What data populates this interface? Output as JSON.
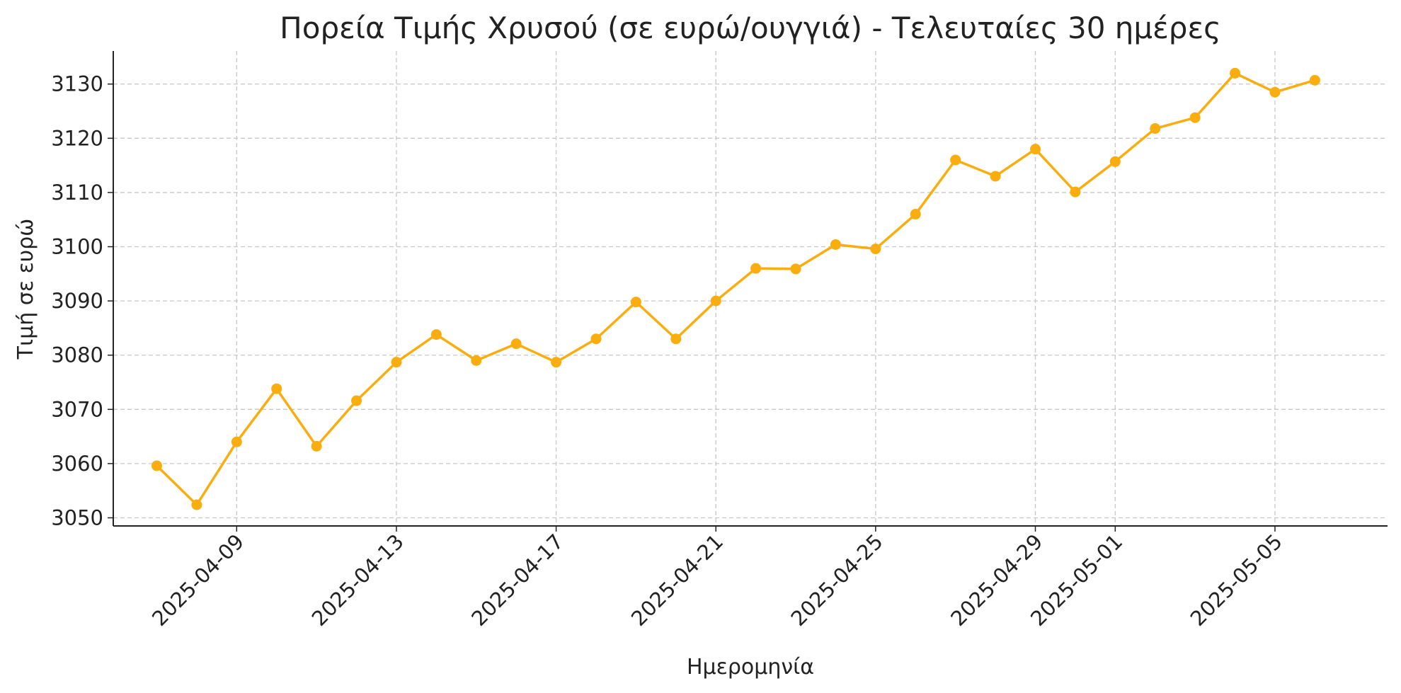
{
  "chart_data": {
    "type": "line",
    "title": "Πορεία Τιμής Χρυσού (σε ευρώ/ουγγιά) - Τελευταίες 30 ημέρες",
    "xlabel": "Ημερομηνία",
    "ylabel": "Τιμή σε ευρώ",
    "x": [
      "2025-04-07",
      "2025-04-08",
      "2025-04-09",
      "2025-04-10",
      "2025-04-11",
      "2025-04-12",
      "2025-04-13",
      "2025-04-14",
      "2025-04-15",
      "2025-04-16",
      "2025-04-17",
      "2025-04-18",
      "2025-04-19",
      "2025-04-20",
      "2025-04-21",
      "2025-04-22",
      "2025-04-23",
      "2025-04-24",
      "2025-04-25",
      "2025-04-26",
      "2025-04-27",
      "2025-04-28",
      "2025-04-29",
      "2025-04-30",
      "2025-05-01",
      "2025-05-02",
      "2025-05-03",
      "2025-05-04",
      "2025-05-05",
      "2025-05-06"
    ],
    "series": [
      {
        "name": "Τιμή",
        "color": "#f9ad0e",
        "values": [
          3059.6,
          3052.4,
          3064.0,
          3073.8,
          3063.2,
          3071.6,
          3078.7,
          3083.8,
          3079.0,
          3082.1,
          3078.7,
          3083.0,
          3089.8,
          3083.0,
          3090.0,
          3096.0,
          3095.9,
          3100.4,
          3099.6,
          3106.0,
          3116.0,
          3113.0,
          3118.0,
          3110.1,
          3115.7,
          3121.8,
          3123.8,
          3132.0,
          3128.5,
          3130.7
        ]
      }
    ],
    "xlim": [
      "2025-04-05T21:50:00Z",
      "2025-05-07T19:40:00Z"
    ],
    "xticks": [
      "2025-04-09",
      "2025-04-13",
      "2025-04-17",
      "2025-04-21",
      "2025-04-25",
      "2025-04-29",
      "2025-05-01",
      "2025-05-05"
    ],
    "ylim": [
      3048.5,
      3136.1
    ],
    "yticks": [
      3050,
      3060,
      3070,
      3080,
      3090,
      3100,
      3110,
      3120,
      3130
    ],
    "grid": true
  }
}
